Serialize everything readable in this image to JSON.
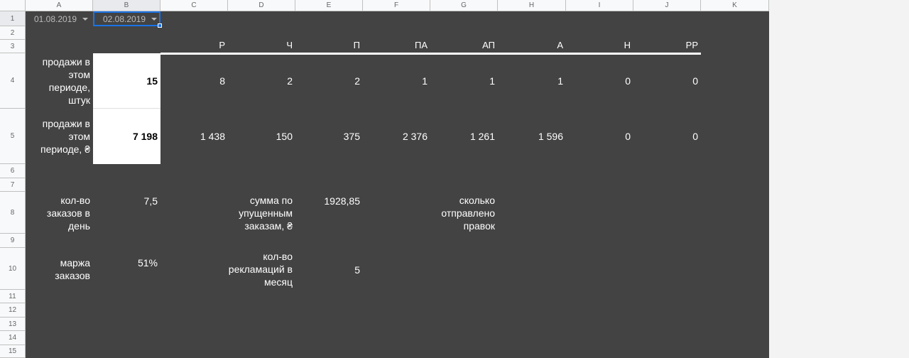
{
  "columns": [
    "A",
    "B",
    "C",
    "D",
    "E",
    "F",
    "G",
    "H",
    "I",
    "J",
    "K"
  ],
  "rows": [
    "1",
    "2",
    "3",
    "4",
    "5",
    "6",
    "7",
    "8",
    "9",
    "10",
    "11",
    "12",
    "13",
    "14",
    "15"
  ],
  "date_from": "01.08.2019",
  "date_to": "02.08.2019",
  "categories": [
    "Р",
    "Ч",
    "П",
    "ПА",
    "АП",
    "А",
    "Н",
    "РР"
  ],
  "sales_qty": {
    "label": "продажи в этом периоде, штук",
    "total": "15",
    "values": [
      "8",
      "2",
      "2",
      "1",
      "1",
      "1",
      "0",
      "0"
    ]
  },
  "sales_sum": {
    "label": "продажи в этом периоде, ₴",
    "total": "7 198",
    "values": [
      "1 438",
      "150",
      "375",
      "2 376",
      "1 261",
      "1 596",
      "0",
      "0"
    ]
  },
  "orders_per_day": {
    "label": "кол-во заказов в день",
    "value": "7,5"
  },
  "missed_sum": {
    "label": "сумма по упущенным заказам, ₴",
    "value": "1928,85"
  },
  "edits_sent": {
    "label": "сколько отправлено правок"
  },
  "margin": {
    "label": "маржа заказов",
    "value": "51%"
  },
  "complaints": {
    "label": "кол-во рекламаций в месяц",
    "value": "5"
  },
  "colors": {
    "sheet_bg": "#434343",
    "selection": "#1a73e8"
  }
}
